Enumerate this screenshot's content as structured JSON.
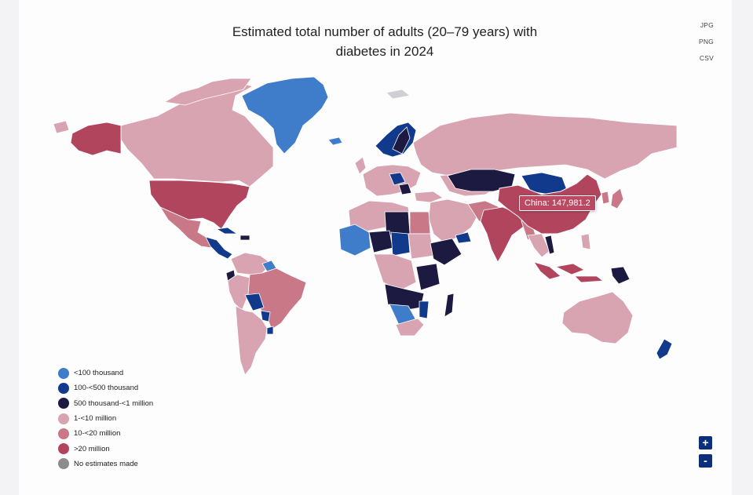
{
  "title": "Estimated total number of adults (20–79 years) with diabetes in 2024",
  "title_lines": [
    "Estimated total number of adults (20–79 years) with",
    "diabetes in 2024"
  ],
  "export": [
    "JPG",
    "PNG",
    "CSV"
  ],
  "tooltip": "China: 147,981.2",
  "legend": [
    {
      "label": "<100 thousand",
      "color": "#3f7cc9"
    },
    {
      "label": "100-<500 thousand",
      "color": "#123a8c"
    },
    {
      "label": "500 thousand-<1 million",
      "color": "#1c1a40"
    },
    {
      "label": "1-<10 million",
      "color": "#d8a4b1"
    },
    {
      "label": "10-<20 million",
      "color": "#c97888"
    },
    {
      "label": ">20 million",
      "color": "#b2455e"
    },
    {
      "label": "No estimates made",
      "color": "#8c8c8c"
    }
  ],
  "zoom": {
    "in": "+",
    "out": "-"
  }
}
